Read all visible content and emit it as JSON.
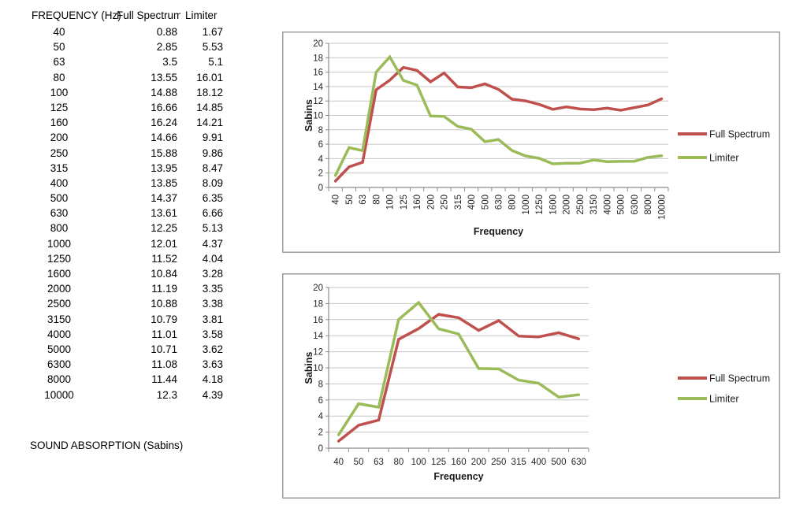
{
  "table": {
    "headers": [
      "FREQUENCY (Hz)",
      "Full Spectrum",
      "Limiter"
    ],
    "rows": [
      [
        "40",
        "0.88",
        "1.67"
      ],
      [
        "50",
        "2.85",
        "5.53"
      ],
      [
        "63",
        "3.5",
        "5.1"
      ],
      [
        "80",
        "13.55",
        "16.01"
      ],
      [
        "100",
        "14.88",
        "18.12"
      ],
      [
        "125",
        "16.66",
        "14.85"
      ],
      [
        "160",
        "16.24",
        "14.21"
      ],
      [
        "200",
        "14.66",
        "9.91"
      ],
      [
        "250",
        "15.88",
        "9.86"
      ],
      [
        "315",
        "13.95",
        "8.47"
      ],
      [
        "400",
        "13.85",
        "8.09"
      ],
      [
        "500",
        "14.37",
        "6.35"
      ],
      [
        "630",
        "13.61",
        "6.66"
      ],
      [
        "800",
        "12.25",
        "5.13"
      ],
      [
        "1000",
        "12.01",
        "4.37"
      ],
      [
        "1250",
        "11.52",
        "4.04"
      ],
      [
        "1600",
        "10.84",
        "3.28"
      ],
      [
        "2000",
        "11.19",
        "3.35"
      ],
      [
        "2500",
        "10.88",
        "3.38"
      ],
      [
        "3150",
        "10.79",
        "3.81"
      ],
      [
        "4000",
        "11.01",
        "3.58"
      ],
      [
        "5000",
        "10.71",
        "3.62"
      ],
      [
        "6300",
        "11.08",
        "3.63"
      ],
      [
        "8000",
        "11.44",
        "4.18"
      ],
      [
        "10000",
        "12.3",
        "4.39"
      ]
    ]
  },
  "footer_label": "SOUND ABSORPTION (Sabins)",
  "colors": {
    "full_spectrum": "#C0504D",
    "limiter": "#9BBB59",
    "gridline": "#C6C6C6",
    "axis": "#8C8C8C",
    "chart_border": "#9E9E9E",
    "background": "#FFFFFF"
  },
  "chart_data": [
    {
      "type": "line",
      "title": "",
      "xlabel": "Frequency",
      "ylabel": "Sabins",
      "ylim": [
        0,
        20
      ],
      "ytick_step": 2,
      "grid": true,
      "legend_position": "right",
      "rotated_tick_labels": true,
      "categories": [
        "40",
        "50",
        "63",
        "80",
        "100",
        "125",
        "160",
        "200",
        "250",
        "315",
        "400",
        "500",
        "630",
        "800",
        "1000",
        "1250",
        "1600",
        "2000",
        "2500",
        "3150",
        "4000",
        "5000",
        "6300",
        "8000",
        "10000"
      ],
      "series": [
        {
          "name": "Full Spectrum",
          "color": "#C0504D",
          "values": [
            0.88,
            2.85,
            3.5,
            13.55,
            14.88,
            16.66,
            16.24,
            14.66,
            15.88,
            13.95,
            13.85,
            14.37,
            13.61,
            12.25,
            12.01,
            11.52,
            10.84,
            11.19,
            10.88,
            10.79,
            11.01,
            10.71,
            11.08,
            11.44,
            12.3
          ]
        },
        {
          "name": "Limiter",
          "color": "#9BBB59",
          "values": [
            1.67,
            5.53,
            5.1,
            16.01,
            18.12,
            14.85,
            14.21,
            9.91,
            9.86,
            8.47,
            8.09,
            6.35,
            6.66,
            5.13,
            4.37,
            4.04,
            3.28,
            3.35,
            3.38,
            3.81,
            3.58,
            3.62,
            3.63,
            4.18,
            4.39
          ]
        }
      ]
    },
    {
      "type": "line",
      "title": "",
      "xlabel": "Frequency",
      "ylabel": "Sabins",
      "ylim": [
        0,
        20
      ],
      "ytick_step": 2,
      "grid": true,
      "legend_position": "right",
      "rotated_tick_labels": false,
      "categories": [
        "40",
        "50",
        "63",
        "80",
        "100",
        "125",
        "160",
        "200",
        "250",
        "315",
        "400",
        "500",
        "630"
      ],
      "series": [
        {
          "name": "Full Spectrum",
          "color": "#C0504D",
          "values": [
            0.88,
            2.85,
            3.5,
            13.55,
            14.88,
            16.66,
            16.24,
            14.66,
            15.88,
            13.95,
            13.85,
            14.37,
            13.61
          ]
        },
        {
          "name": "Limiter",
          "color": "#9BBB59",
          "values": [
            1.67,
            5.53,
            5.1,
            16.01,
            18.12,
            14.85,
            14.21,
            9.91,
            9.86,
            8.47,
            8.09,
            6.35,
            6.66
          ]
        }
      ]
    }
  ]
}
